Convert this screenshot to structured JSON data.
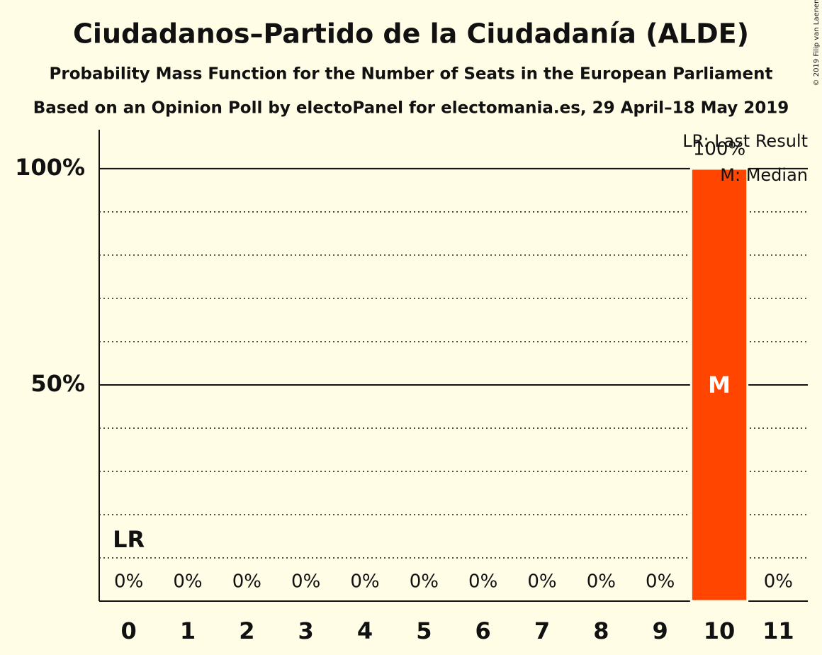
{
  "chart_data": {
    "type": "bar",
    "title": "Ciudadanos–Partido de la Ciudadanía (ALDE)",
    "subtitle": "Probability Mass Function for the Number of Seats in the European Parliament",
    "source": "Based on an Opinion Poll by electoPanel for electomania.es, 29 April–18 May 2019",
    "copyright": "© 2019 Filip van Laenen",
    "categories": [
      "0",
      "1",
      "2",
      "3",
      "4",
      "5",
      "6",
      "7",
      "8",
      "9",
      "10",
      "11"
    ],
    "values": [
      0,
      0,
      0,
      0,
      0,
      0,
      0,
      0,
      0,
      0,
      100,
      0
    ],
    "value_labels": [
      "0%",
      "0%",
      "0%",
      "0%",
      "0%",
      "0%",
      "0%",
      "0%",
      "0%",
      "0%",
      "100%",
      "0%"
    ],
    "color": "#ff4500",
    "ylim": [
      0,
      109
    ],
    "yticks": [
      {
        "value": 50,
        "label": "50%"
      },
      {
        "value": 100,
        "label": "100%"
      }
    ],
    "minor_grid": [
      10,
      20,
      30,
      40,
      60,
      70,
      80,
      90
    ],
    "last_result": {
      "label": "LR",
      "category": 0
    },
    "median": {
      "label": "M",
      "category": 10
    },
    "legend": [
      "LR: Last Result",
      "M: Median"
    ]
  }
}
